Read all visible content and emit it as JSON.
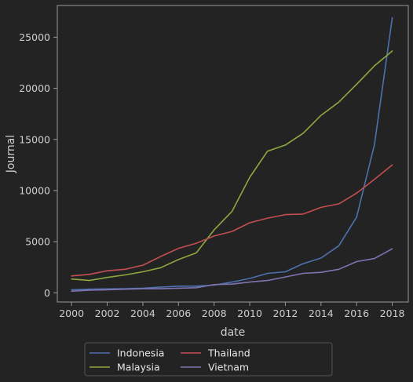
{
  "chart_data": {
    "type": "line",
    "xlabel": "date",
    "ylabel": "Journal",
    "x": [
      2000,
      2001,
      2002,
      2003,
      2004,
      2005,
      2006,
      2007,
      2008,
      2009,
      2010,
      2011,
      2012,
      2013,
      2014,
      2015,
      2016,
      2017,
      2018
    ],
    "xticks": [
      "2000",
      "2002",
      "2004",
      "2006",
      "2008",
      "2010",
      "2012",
      "2014",
      "2016",
      "2018"
    ],
    "yticks": [
      "0",
      "5000",
      "10000",
      "15000",
      "20000",
      "25000"
    ],
    "xlim": [
      1999.2,
      2018.9
    ],
    "ylim": [
      -900,
      28100
    ],
    "grid": false,
    "legend_position": "bottom-center",
    "series": [
      {
        "name": "Indonesia",
        "color": "#4C72B0",
        "values": [
          300,
          350,
          380,
          400,
          450,
          550,
          650,
          650,
          750,
          1050,
          1400,
          1900,
          2050,
          2850,
          3400,
          4600,
          7400,
          14500,
          26900
        ]
      },
      {
        "name": "Malaysia",
        "color": "#8EA83F",
        "values": [
          1350,
          1200,
          1500,
          1750,
          2050,
          2450,
          3250,
          3900,
          6150,
          7950,
          11300,
          13850,
          14450,
          15600,
          17350,
          18650,
          20400,
          22200,
          23650
        ]
      },
      {
        "name": "Thailand",
        "color": "#C44E52",
        "values": [
          1650,
          1800,
          2150,
          2300,
          2700,
          3550,
          4350,
          4850,
          5550,
          6000,
          6850,
          7300,
          7650,
          7700,
          8350,
          8700,
          9750,
          11100,
          12500
        ]
      },
      {
        "name": "Vietnam",
        "color": "#8172B2",
        "values": [
          150,
          250,
          300,
          350,
          400,
          400,
          450,
          500,
          800,
          850,
          1050,
          1200,
          1550,
          1900,
          2000,
          2300,
          3050,
          3350,
          4300
        ]
      }
    ]
  }
}
